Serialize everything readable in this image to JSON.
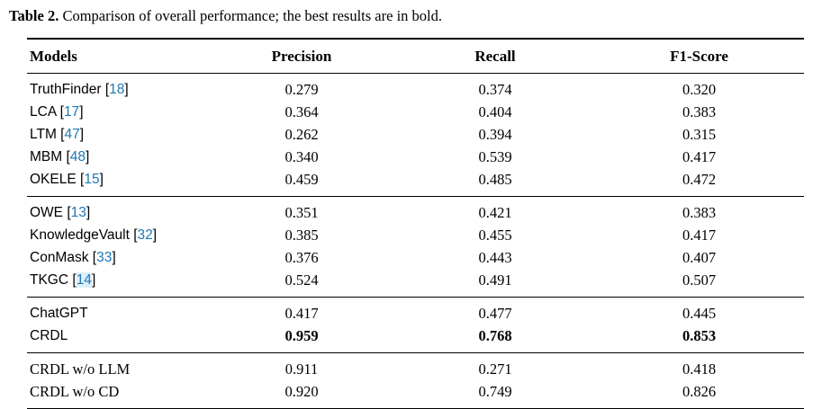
{
  "caption": {
    "label": "Table 2.",
    "text": " Comparison of overall performance; the best results are in bold."
  },
  "columns": {
    "models": "Models",
    "precision": "Precision",
    "recall": "Recall",
    "f1": "F1-Score"
  },
  "colors": {
    "citation_blue": "#1e78b4",
    "citation_highlight": "#ddeefa",
    "text": "#000000",
    "background": "#ffffff"
  },
  "table": {
    "groups": [
      {
        "rows": [
          {
            "model": "TruthFinder",
            "cite": "18",
            "precision": "0.279",
            "recall": "0.374",
            "f1": "0.320"
          },
          {
            "model": "LCA",
            "cite": "17",
            "precision": "0.364",
            "recall": "0.404",
            "f1": "0.383"
          },
          {
            "model": "LTM",
            "cite": "47",
            "precision": "0.262",
            "recall": "0.394",
            "f1": "0.315"
          },
          {
            "model": "MBM",
            "cite": "48",
            "precision": "0.340",
            "recall": "0.539",
            "f1": "0.417"
          },
          {
            "model": "OKELE",
            "cite": "15",
            "precision": "0.459",
            "recall": "0.485",
            "f1": "0.472"
          }
        ]
      },
      {
        "rows": [
          {
            "model": "OWE",
            "cite": "13",
            "precision": "0.351",
            "recall": "0.421",
            "f1": "0.383"
          },
          {
            "model": "KnowledgeVault",
            "cite": "32",
            "precision": "0.385",
            "recall": "0.455",
            "f1": "0.417"
          },
          {
            "model": "ConMask",
            "cite": "33",
            "precision": "0.376",
            "recall": "0.443",
            "f1": "0.407"
          },
          {
            "model": "TKGC",
            "cite": "14",
            "precision": "0.524",
            "recall": "0.491",
            "f1": "0.507"
          }
        ]
      },
      {
        "rows": [
          {
            "model": "ChatGPT",
            "precision": "0.417",
            "recall": "0.477",
            "f1": "0.445"
          },
          {
            "model": "CRDL",
            "precision": "0.959",
            "recall": "0.768",
            "f1": "0.853",
            "best": true
          }
        ]
      },
      {
        "rows": [
          {
            "model": "CRDL w/o LLM",
            "precision": "0.911",
            "recall": "0.271",
            "f1": "0.418"
          },
          {
            "model": "CRDL w/o CD",
            "precision": "0.920",
            "recall": "0.749",
            "f1": "0.826"
          }
        ]
      }
    ]
  }
}
